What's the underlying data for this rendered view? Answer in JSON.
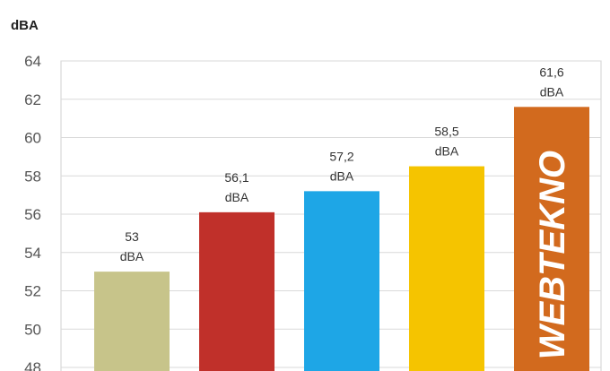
{
  "chart_data": {
    "type": "bar",
    "ylabel": "dBA",
    "ylim": [
      48,
      64
    ],
    "yticks": [
      48,
      50,
      52,
      54,
      56,
      58,
      60,
      62,
      64
    ],
    "grid": true,
    "legend": "none",
    "bars": [
      {
        "value": 53.0,
        "label": [
          "53",
          "dBA"
        ],
        "color": "#c7c48a"
      },
      {
        "value": 56.1,
        "label": [
          "56,1",
          "dBA"
        ],
        "color": "#c0302a"
      },
      {
        "value": 57.2,
        "label": [
          "57,2",
          "dBA"
        ],
        "color": "#1ea6e6"
      },
      {
        "value": 58.5,
        "label": [
          "58,5",
          "dBA"
        ],
        "color": "#f5c400"
      },
      {
        "value": 61.6,
        "label": [
          "61,6",
          "dBA"
        ],
        "color": "#d26a1e",
        "watermark": "WEBTEKNO"
      }
    ]
  }
}
